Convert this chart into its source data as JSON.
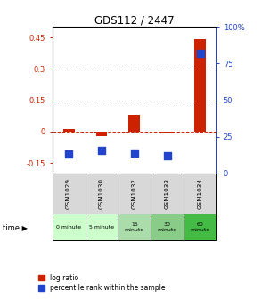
{
  "title": "GDS112 / 2447",
  "samples": [
    "GSM1029",
    "GSM1030",
    "GSM1032",
    "GSM1033",
    "GSM1034"
  ],
  "time_labels": [
    "0 minute",
    "5 minute",
    "15\nminute",
    "30\nminute",
    "60\nminute"
  ],
  "time_colors": [
    "#ccffcc",
    "#ccffcc",
    "#aaddaa",
    "#88cc88",
    "#44bb44"
  ],
  "log_ratio": [
    0.01,
    -0.02,
    0.08,
    -0.01,
    0.44
  ],
  "percentile_rank": [
    0.13,
    0.16,
    0.14,
    0.12,
    0.82
  ],
  "bar_color": "#cc2200",
  "dot_color": "#2244cc",
  "ylim_left": [
    -0.2,
    0.5
  ],
  "ylim_right": [
    -0.2,
    0.5
  ],
  "left_yticks": [
    -0.15,
    0.0,
    0.15,
    0.3,
    0.45
  ],
  "left_yticklabels": [
    "-0.15",
    "0",
    "0.15",
    "0.3",
    "0.45"
  ],
  "right_yticks_data": [
    0.0,
    0.25,
    0.5,
    0.75,
    1.0
  ],
  "right_ytick_display": [
    -0.2,
    -0.025,
    0.15,
    0.325,
    0.5
  ],
  "right_yticklabels": [
    "0",
    "25",
    "50",
    "75",
    "100%"
  ],
  "hlines": [
    0.15,
    0.3
  ],
  "hline_zero_color": "#cc2200",
  "sample_bg": "#d8d8d8",
  "plot_bg": "#ffffff",
  "left_axis_color": "#cc2200",
  "right_axis_color": "#2244cc",
  "legend_labels": [
    "log ratio",
    "percentile rank within the sample"
  ]
}
